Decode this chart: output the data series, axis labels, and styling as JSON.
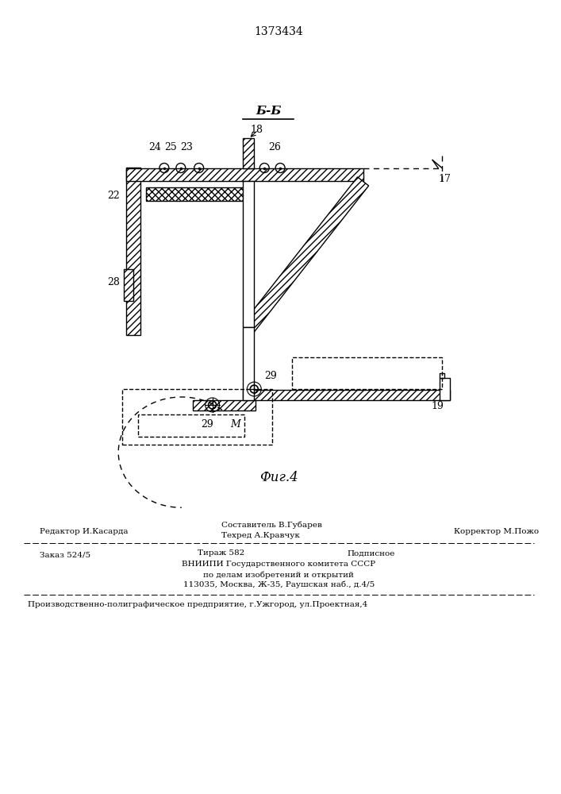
{
  "title_number": "1373434",
  "section_label": "Б-Б",
  "fig_label": "Фиг.4",
  "bg_color": "#ffffff",
  "line_color": "#000000",
  "footer_line1_left": "Редактор И.Касарда",
  "footer_line1_center_top": "Составитель В.Губарев",
  "footer_line1_center_bot": "Техред А.Кравчук",
  "footer_line1_right": "Корректор М.Пожо",
  "footer_line2_left": "Заказ 524/5",
  "footer_line2_c1": "Тираж 582",
  "footer_line2_c2": "Подписное",
  "footer_line2_c3": "ВНИИПИ Государственного комитета СССР",
  "footer_line2_c4": "по делам изобретений и открытий",
  "footer_line2_c5": "113035, Москва, Ж-35, Раушская наб., д.4/5",
  "footer_line3": "Производственно-полиграфическое предприятие, г.Ужгород, ул.Проектная,4"
}
